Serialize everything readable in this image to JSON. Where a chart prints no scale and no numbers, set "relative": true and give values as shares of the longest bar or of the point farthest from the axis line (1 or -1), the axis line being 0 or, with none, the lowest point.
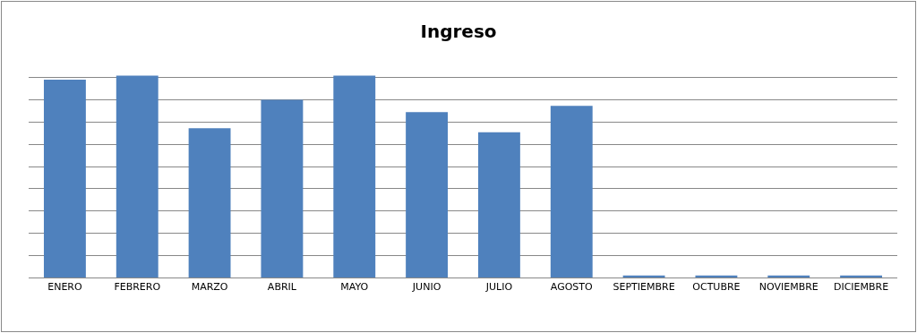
{
  "chart_data": {
    "type": "bar",
    "title": "Ingreso",
    "relative": true,
    "grid": "y",
    "legend": false,
    "categories": [
      "ENERO",
      "FEBRERO",
      "MARZO",
      "ABRIL",
      "MAYO",
      "JUNIO",
      "JULIO",
      "AGOSTO",
      "SEPTIEMBRE",
      "OCTUBRE",
      "NOVIEMBRE",
      "DICIEMBRE"
    ],
    "values": [
      0.98,
      1,
      0.74,
      0.88,
      1,
      0.82,
      0.72,
      0.85,
      0.01,
      0.01,
      0.01,
      0.01
    ],
    "color": "#4f81bd"
  }
}
